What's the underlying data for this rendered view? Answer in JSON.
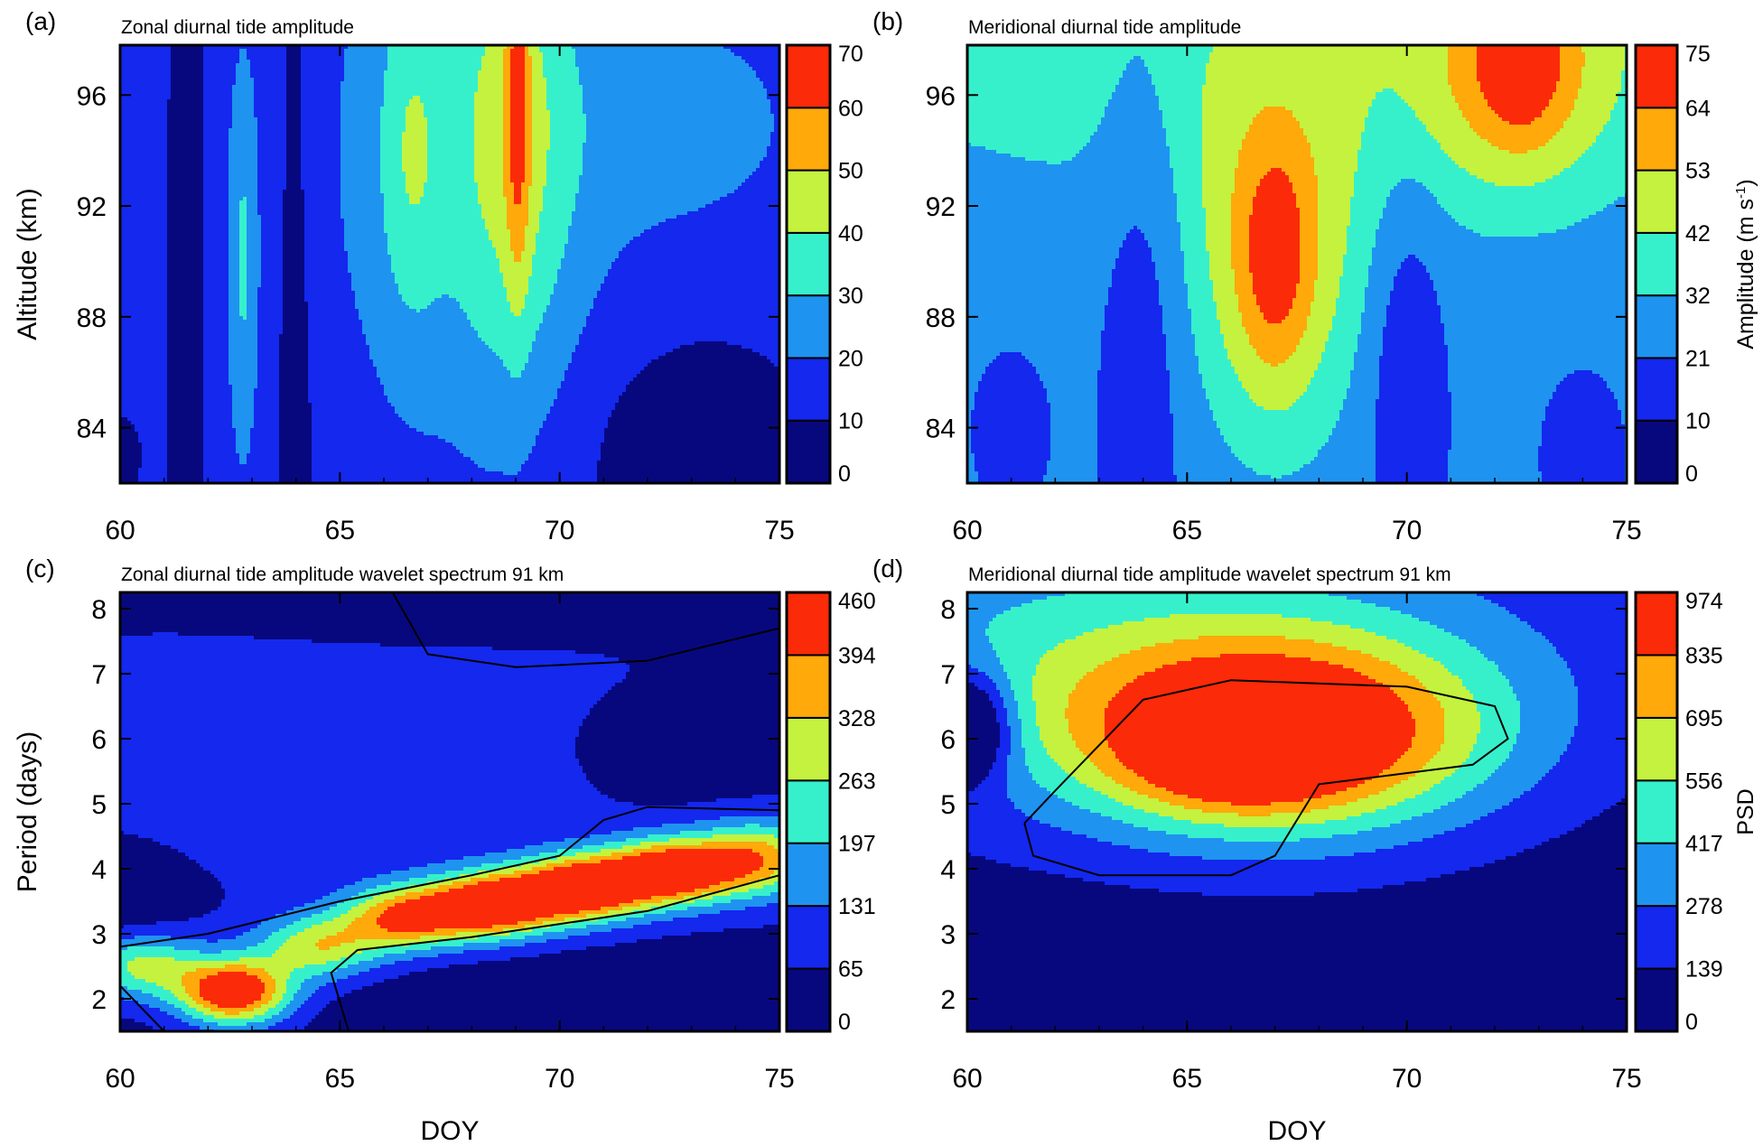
{
  "colors": [
    "#08087e",
    "#1428ee",
    "#1f93f0",
    "#36f0cc",
    "#c4f23e",
    "#ffa90a",
    "#fb2a08"
  ],
  "xlabel": "DOY",
  "chart_data": [
    {
      "panel": "a",
      "label": "(a)",
      "type": "contour",
      "title": "Zonal diurnal tide amplitude",
      "xlim": [
        60,
        75
      ],
      "ylim": [
        82,
        97.8
      ],
      "xticks": [
        "60",
        "65",
        "70",
        "75"
      ],
      "yticks": [
        "84",
        "88",
        "92",
        "96"
      ],
      "ylabel": "Altitude (km)",
      "colorbar": {
        "levels": [
          "0",
          "10",
          "20",
          "30",
          "40",
          "50",
          "60",
          "70"
        ],
        "label": ""
      },
      "field": {
        "background": 14,
        "features": [
          {
            "x": 61.5,
            "y": 90,
            "sx": 0.35,
            "sy": 20,
            "a": -8
          },
          {
            "x": 64.0,
            "y": 90,
            "sx": 0.4,
            "sy": 20,
            "a": -8
          },
          {
            "x": 73.0,
            "y": 83,
            "sx": 2.0,
            "sy": 3.2,
            "a": -11
          },
          {
            "x": 60.1,
            "y": 83,
            "sx": 0.4,
            "sy": 1.5,
            "a": -6
          },
          {
            "x": 62.8,
            "y": 90,
            "sx": 0.25,
            "sy": 5,
            "a": 17
          },
          {
            "x": 68.0,
            "y": 94,
            "sx": 2.2,
            "sy": 7,
            "a": 16
          },
          {
            "x": 66.6,
            "y": 94,
            "sx": 0.5,
            "sy": 4.5,
            "a": 14
          },
          {
            "x": 69.0,
            "y": 95,
            "sx": 0.9,
            "sy": 7,
            "a": 17
          },
          {
            "x": 69.05,
            "y": 96,
            "sx": 0.2,
            "sy": 5,
            "a": 22
          },
          {
            "x": 73.0,
            "y": 95,
            "sx": 2.0,
            "sy": 3,
            "a": 9
          }
        ]
      },
      "contour_lines": []
    },
    {
      "panel": "b",
      "label": "(b)",
      "type": "contour",
      "title": "Meridional diurnal tide amplitude",
      "xlim": [
        60,
        75
      ],
      "ylim": [
        82,
        97.8
      ],
      "xticks": [
        "60",
        "65",
        "70",
        "75"
      ],
      "yticks": [
        "84",
        "88",
        "92",
        "96"
      ],
      "ylabel": "",
      "colorbar": {
        "levels": [
          "0",
          "10",
          "21",
          "32",
          "42",
          "53",
          "64",
          "75"
        ],
        "label": "Amplitude (m s",
        "label_sup": "-1",
        "label_end": ")"
      },
      "field": {
        "background": 24,
        "features": [
          {
            "x": 67.5,
            "y": 98,
            "sx": 10,
            "sy": 5,
            "a": 14
          },
          {
            "x": 67.0,
            "y": 90,
            "sx": 1.5,
            "sy": 5,
            "a": 24
          },
          {
            "x": 67.0,
            "y": 90,
            "sx": 0.6,
            "sy": 3,
            "a": 22
          },
          {
            "x": 72.5,
            "y": 97,
            "sx": 1.5,
            "sy": 3,
            "a": 28
          },
          {
            "x": 72.6,
            "y": 97.5,
            "sx": 0.6,
            "sy": 2,
            "a": 18
          },
          {
            "x": 64.0,
            "y": 88,
            "sx": 0.7,
            "sy": 8,
            "a": -12
          },
          {
            "x": 70.0,
            "y": 86,
            "sx": 0.6,
            "sy": 5,
            "a": -15
          },
          {
            "x": 61.0,
            "y": 84,
            "sx": 0.6,
            "sy": 2,
            "a": -10
          },
          {
            "x": 74.0,
            "y": 83,
            "sx": 0.6,
            "sy": 2,
            "a": -12
          }
        ]
      },
      "contour_lines": []
    },
    {
      "panel": "c",
      "label": "(c)",
      "type": "contour",
      "title": "Zonal diurnal tide amplitude wavelet spectrum 91 km",
      "xlim": [
        60,
        75
      ],
      "ylim": [
        1.5,
        8.25
      ],
      "xticks": [
        "60",
        "65",
        "70",
        "75"
      ],
      "yticks": [
        "2",
        "3",
        "4",
        "5",
        "6",
        "7",
        "8"
      ],
      "ylabel": "Period (days)",
      "colorbar": {
        "levels": [
          "0",
          "65",
          "131",
          "197",
          "263",
          "328",
          "394",
          "460"
        ],
        "label": ""
      },
      "field": {
        "background": 40,
        "features": [
          {
            "x": 67,
            "y": 6,
            "sx": 8,
            "sy": 2.2,
            "a": 55
          },
          {
            "x": 60,
            "y": 3.5,
            "sx": 1,
            "sy": 0.5,
            "a": -50
          },
          {
            "x": 73,
            "y": 5.9,
            "sx": 2,
            "sy": 0.7,
            "a": -60
          },
          {
            "x": 68,
            "y": 8.3,
            "sx": 4,
            "sy": 0.6,
            "a": -60
          },
          {
            "x": 70,
            "y": 1.9,
            "sx": 4,
            "sy": 0.6,
            "a": -40
          },
          {
            "x": 60.5,
            "y": 2.5,
            "sx": 1.0,
            "sy": 0.35,
            "a": 230
          },
          {
            "x": 62.6,
            "y": 2.1,
            "sx": 0.9,
            "sy": 0.35,
            "a": 440
          },
          {
            "x": 64.5,
            "y": 2.8,
            "sx": 1.0,
            "sy": 0.35,
            "a": 250
          },
          {
            "x": 66.5,
            "y": 3.25,
            "sx": 1.0,
            "sy": 0.35,
            "a": 340
          },
          {
            "x": 68.5,
            "y": 3.45,
            "sx": 1.0,
            "sy": 0.35,
            "a": 440
          },
          {
            "x": 70.5,
            "y": 3.7,
            "sx": 1.0,
            "sy": 0.35,
            "a": 450
          },
          {
            "x": 72.5,
            "y": 3.95,
            "sx": 1.0,
            "sy": 0.35,
            "a": 430
          },
          {
            "x": 74.5,
            "y": 4.15,
            "sx": 1.0,
            "sy": 0.4,
            "a": 300
          }
        ]
      },
      "contour_lines": [
        [
          [
            60,
            2.8
          ],
          [
            62,
            3.0
          ],
          [
            65,
            3.5
          ],
          [
            68,
            3.9
          ],
          [
            70,
            4.2
          ],
          [
            71,
            4.75
          ],
          [
            72,
            4.95
          ],
          [
            75,
            4.9
          ]
        ],
        [
          [
            65.2,
            1.5
          ],
          [
            64.8,
            2.4
          ],
          [
            65.4,
            2.75
          ],
          [
            68,
            2.95
          ],
          [
            72,
            3.35
          ],
          [
            75,
            3.9
          ]
        ],
        [
          [
            60,
            2.2
          ],
          [
            61,
            1.5
          ]
        ],
        [
          [
            66.2,
            8.25
          ],
          [
            67,
            7.3
          ],
          [
            69,
            7.1
          ],
          [
            72,
            7.2
          ],
          [
            75,
            7.7
          ]
        ]
      ]
    },
    {
      "panel": "d",
      "label": "(d)",
      "type": "contour",
      "title": "Meridional diurnal tide amplitude wavelet spectrum 91 km",
      "xlim": [
        60,
        75
      ],
      "ylim": [
        1.5,
        8.25
      ],
      "xticks": [
        "60",
        "65",
        "70",
        "75"
      ],
      "yticks": [
        "2",
        "3",
        "4",
        "5",
        "6",
        "7",
        "8"
      ],
      "ylabel": "",
      "colorbar": {
        "levels": [
          "0",
          "139",
          "278",
          "417",
          "556",
          "695",
          "835",
          "974"
        ],
        "label": "PSD"
      },
      "field": {
        "background": 60,
        "features": [
          {
            "x": 67,
            "y": 6.0,
            "sx": 3.2,
            "sy": 1.0,
            "a": 900
          },
          {
            "x": 66,
            "y": 5.6,
            "sx": 1.5,
            "sy": 0.5,
            "a": 200
          },
          {
            "x": 64,
            "y": 7.2,
            "sx": 7,
            "sy": 1.6,
            "a": 420
          },
          {
            "x": 60,
            "y": 6.2,
            "sx": 0.7,
            "sy": 0.6,
            "a": -600
          }
        ]
      },
      "contour_lines": [
        [
          [
            61.3,
            4.7
          ],
          [
            62,
            5.2
          ],
          [
            64,
            6.6
          ],
          [
            66,
            6.9
          ],
          [
            70,
            6.8
          ],
          [
            72,
            6.5
          ],
          [
            72.3,
            6.0
          ],
          [
            71.5,
            5.6
          ],
          [
            68,
            5.3
          ],
          [
            67,
            4.2
          ],
          [
            66,
            3.9
          ],
          [
            63,
            3.9
          ],
          [
            61.5,
            4.2
          ],
          [
            61.3,
            4.7
          ]
        ]
      ]
    }
  ]
}
